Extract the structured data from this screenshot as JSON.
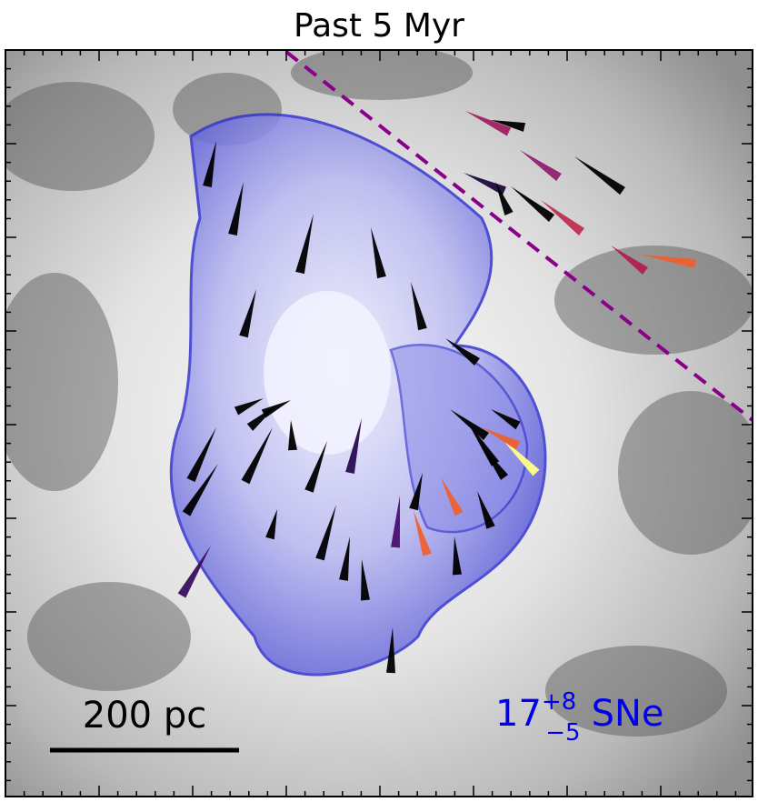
{
  "title": "Past 5 Myr",
  "scale_bar": {
    "label": "200 pc"
  },
  "sn_count": {
    "base": "17",
    "sup": "+8",
    "sub": "−5",
    "suffix": "SNe"
  }
}
